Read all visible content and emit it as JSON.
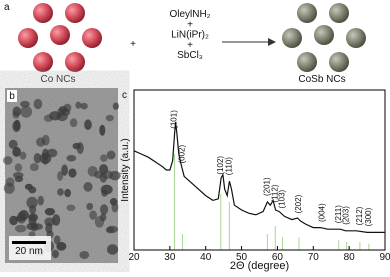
{
  "panels": {
    "a": "a",
    "b": "b",
    "c": "c"
  },
  "scheme": {
    "left_label": "Co NCs",
    "plus": "+",
    "reagents": [
      "OleylNH₂",
      "+",
      "LiN(iPr)₂",
      "+",
      "SbCl₃"
    ],
    "right_label": "CoSb NCs"
  },
  "tem": {
    "scale_bar": "20 nm"
  },
  "chart_data": {
    "type": "line",
    "x_label": "2Θ (degree)",
    "y_label": "Intensity (a.u.)",
    "xlim": [
      20,
      90
    ],
    "xticks": [
      20,
      30,
      40,
      50,
      60,
      70,
      80,
      90
    ],
    "ylim": [
      0,
      100
    ],
    "x": [
      20,
      22,
      24,
      26,
      28,
      29,
      30,
      30.8,
      31.3,
      31.6,
      32,
      32.5,
      33.3,
      34,
      36,
      38,
      40,
      42,
      43.5,
      44.3,
      44.8,
      45.3,
      46,
      46.6,
      47.2,
      48,
      50,
      52,
      54,
      56,
      57.2,
      58,
      58.8,
      59.5,
      60.5,
      62,
      64,
      65.6,
      66.5,
      68,
      70,
      72,
      74,
      76,
      77.5,
      79,
      82,
      85,
      88,
      90
    ],
    "series": [
      {
        "color": "#111111",
        "values": [
          62,
          60,
          58,
          55,
          52,
          50,
          50,
          56,
          72,
          80,
          72,
          60,
          52,
          46,
          42,
          38,
          34,
          31,
          32,
          45,
          47,
          38,
          34,
          43,
          38,
          28,
          25,
          23,
          22,
          24,
          30,
          28,
          31,
          25,
          24,
          21,
          19,
          20,
          18,
          16,
          14,
          14,
          13,
          13,
          13,
          12,
          12,
          11,
          11,
          11
        ]
      }
    ],
    "reference": {
      "color": "#a8d890",
      "x": [
        31.3,
        33.5,
        44.2,
        46.6,
        57.2,
        59.4,
        61.4,
        66,
        77.1,
        79.3,
        83,
        85.5
      ],
      "values": [
        60,
        10,
        35,
        30,
        10,
        15,
        8,
        8,
        6,
        5,
        5,
        4
      ]
    },
    "peak_labels": {
      "labels": [
        "(101)",
        "(002)",
        "(102)",
        "(110)",
        "(201)",
        "(112)",
        "(103)",
        "(202)",
        "(004)",
        "(211)",
        "(203)",
        "(212)",
        "(300)"
      ],
      "x": [
        31.3,
        33.5,
        44.2,
        46.6,
        57.2,
        59.4,
        61.4,
        66,
        72.5,
        77.1,
        79.3,
        83,
        85.5
      ]
    }
  }
}
